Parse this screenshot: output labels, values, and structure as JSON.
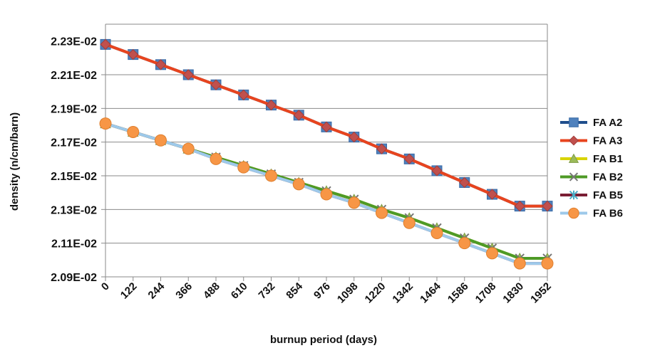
{
  "chart_data": {
    "type": "line",
    "title": "",
    "xlabel": "burnup period (days)",
    "ylabel": "density (n/cm/barn)",
    "categories": [
      "0",
      "122",
      "244",
      "366",
      "488",
      "610",
      "732",
      "854",
      "976",
      "1098",
      "1220",
      "1342",
      "1464",
      "1586",
      "1708",
      "1830",
      "1952"
    ],
    "yticks": [
      "2.09E-02",
      "2.11E-02",
      "2.13E-02",
      "2.15E-02",
      "2.17E-02",
      "2.19E-02",
      "2.21E-02",
      "2.23E-02"
    ],
    "ylim": [
      0.0209,
      0.0224
    ],
    "grid": true,
    "legend_position": "right",
    "series": [
      {
        "name": "FA A2",
        "color": "#1F4E8C",
        "marker": "square",
        "values": [
          0.02228,
          0.02222,
          0.02216,
          0.0221,
          0.02204,
          0.02198,
          0.02192,
          0.02186,
          0.02179,
          0.02173,
          0.02166,
          0.0216,
          0.02153,
          0.02146,
          0.02139,
          0.02132,
          0.02132
        ]
      },
      {
        "name": "FA A3",
        "color": "#E8441E",
        "marker": "diamond",
        "values": [
          0.02228,
          0.02222,
          0.02216,
          0.0221,
          0.02204,
          0.02198,
          0.02192,
          0.02186,
          0.02179,
          0.02173,
          0.02166,
          0.0216,
          0.02153,
          0.02146,
          0.02139,
          0.02132,
          0.02132
        ]
      },
      {
        "name": "FA B1",
        "color": "#D8D400",
        "marker": "triangle",
        "values": [
          0.02181,
          0.02176,
          0.02171,
          0.02166,
          0.02161,
          0.02156,
          0.02151,
          0.02146,
          0.02141,
          0.02136,
          0.0213,
          0.02125,
          0.02119,
          0.02113,
          0.02107,
          0.02101,
          0.02101
        ]
      },
      {
        "name": "FA B2",
        "color": "#4E9A26",
        "marker": "x",
        "values": [
          0.02181,
          0.02176,
          0.02171,
          0.02166,
          0.02161,
          0.02156,
          0.02151,
          0.02146,
          0.02141,
          0.02136,
          0.0213,
          0.02125,
          0.02119,
          0.02113,
          0.02107,
          0.02101,
          0.02101
        ]
      },
      {
        "name": "FA B5",
        "color": "#7A1E34",
        "marker": "star",
        "values": [
          0.02181,
          0.02176,
          0.02171,
          0.02166,
          0.0216,
          0.02155,
          0.0215,
          0.02145,
          0.02139,
          0.02134,
          0.02128,
          0.02122,
          0.02116,
          0.0211,
          0.02104,
          0.02098,
          0.02098
        ]
      },
      {
        "name": "FA B6",
        "color": "#9DC9EA",
        "marker": "circle",
        "values": [
          0.02181,
          0.02176,
          0.02171,
          0.02166,
          0.0216,
          0.02155,
          0.0215,
          0.02145,
          0.02139,
          0.02134,
          0.02128,
          0.02122,
          0.02116,
          0.0211,
          0.02104,
          0.02098,
          0.02098
        ]
      }
    ],
    "marker_colors": {
      "square": "#4F81BD",
      "diamond": "#C0504D",
      "triangle": "#9BBB59",
      "x": "#777777",
      "star": "#4BACC6",
      "circle": "#F79646"
    }
  }
}
